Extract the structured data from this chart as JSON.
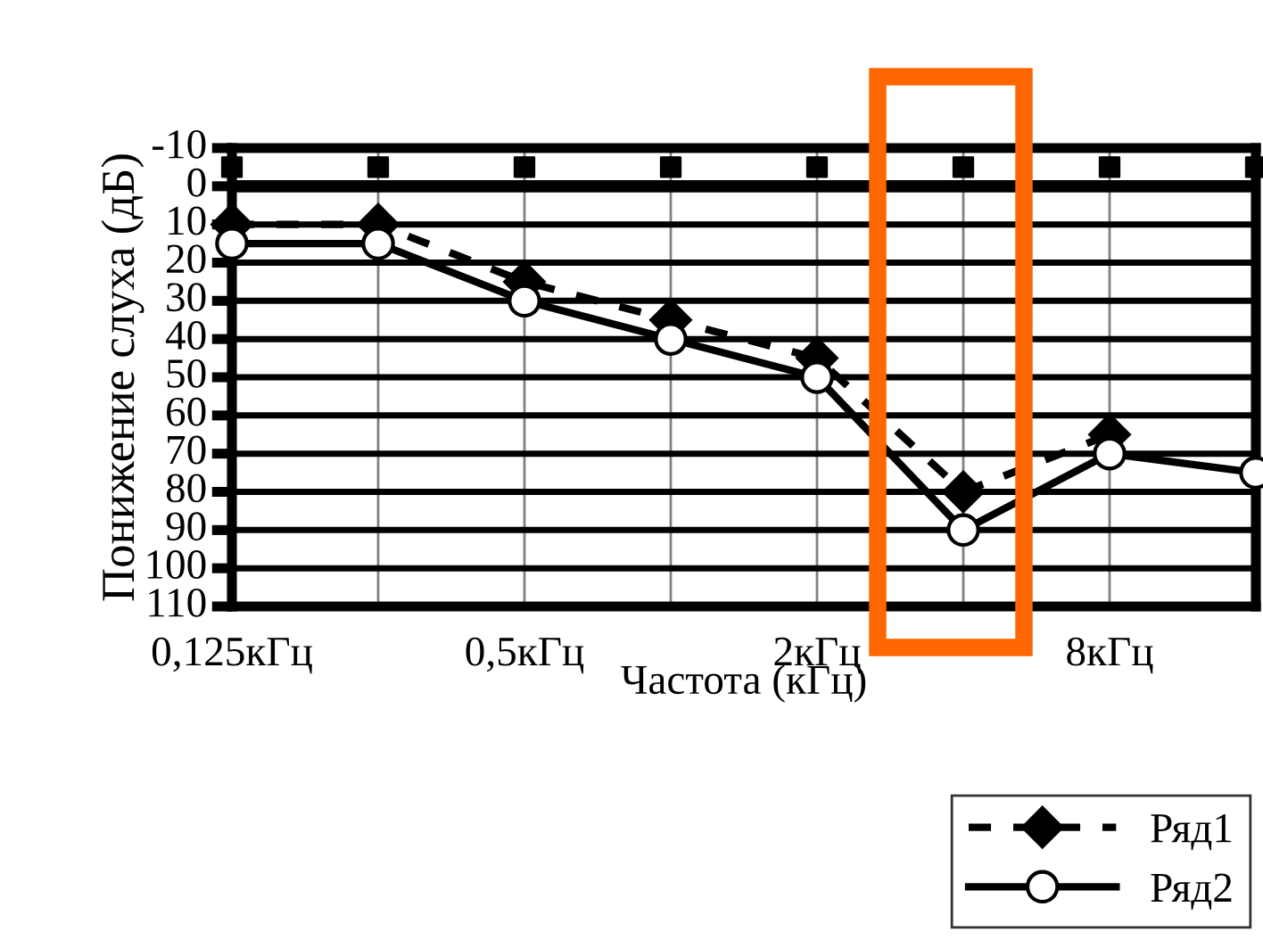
{
  "chart_data": {
    "type": "line",
    "xlabel": "Частота (кГц)",
    "ylabel": "Понижение слуха (дБ)",
    "categories": [
      "0,125кГц",
      null,
      "0,5кГц",
      null,
      "2кГц",
      null,
      "8кГц",
      null
    ],
    "ylim": [
      110,
      -10
    ],
    "yticks": [
      -10,
      0,
      10,
      20,
      30,
      40,
      50,
      60,
      70,
      80,
      90,
      100,
      110
    ],
    "grid": true,
    "legend": "bottom right",
    "ref_lines": [
      {
        "axis": "y",
        "value": 0,
        "color": "#000000",
        "line_style": "solid"
      }
    ],
    "series": [
      {
        "name": "Ряд1",
        "color": "#000000",
        "marker": "diamond",
        "line_style": "dashed",
        "values": [
          10,
          10,
          25,
          35,
          45,
          80,
          65,
          null
        ]
      },
      {
        "name": "Ряд2",
        "color": "#000000",
        "marker": "circle",
        "line_style": "solid",
        "values": [
          15,
          15,
          30,
          40,
          50,
          90,
          70,
          75
        ]
      },
      {
        "type": "scatter",
        "color": "#000000",
        "marker": "square",
        "values": [
          -5,
          -5,
          -5,
          -5,
          -5,
          -5,
          -5,
          -5
        ]
      }
    ]
  }
}
